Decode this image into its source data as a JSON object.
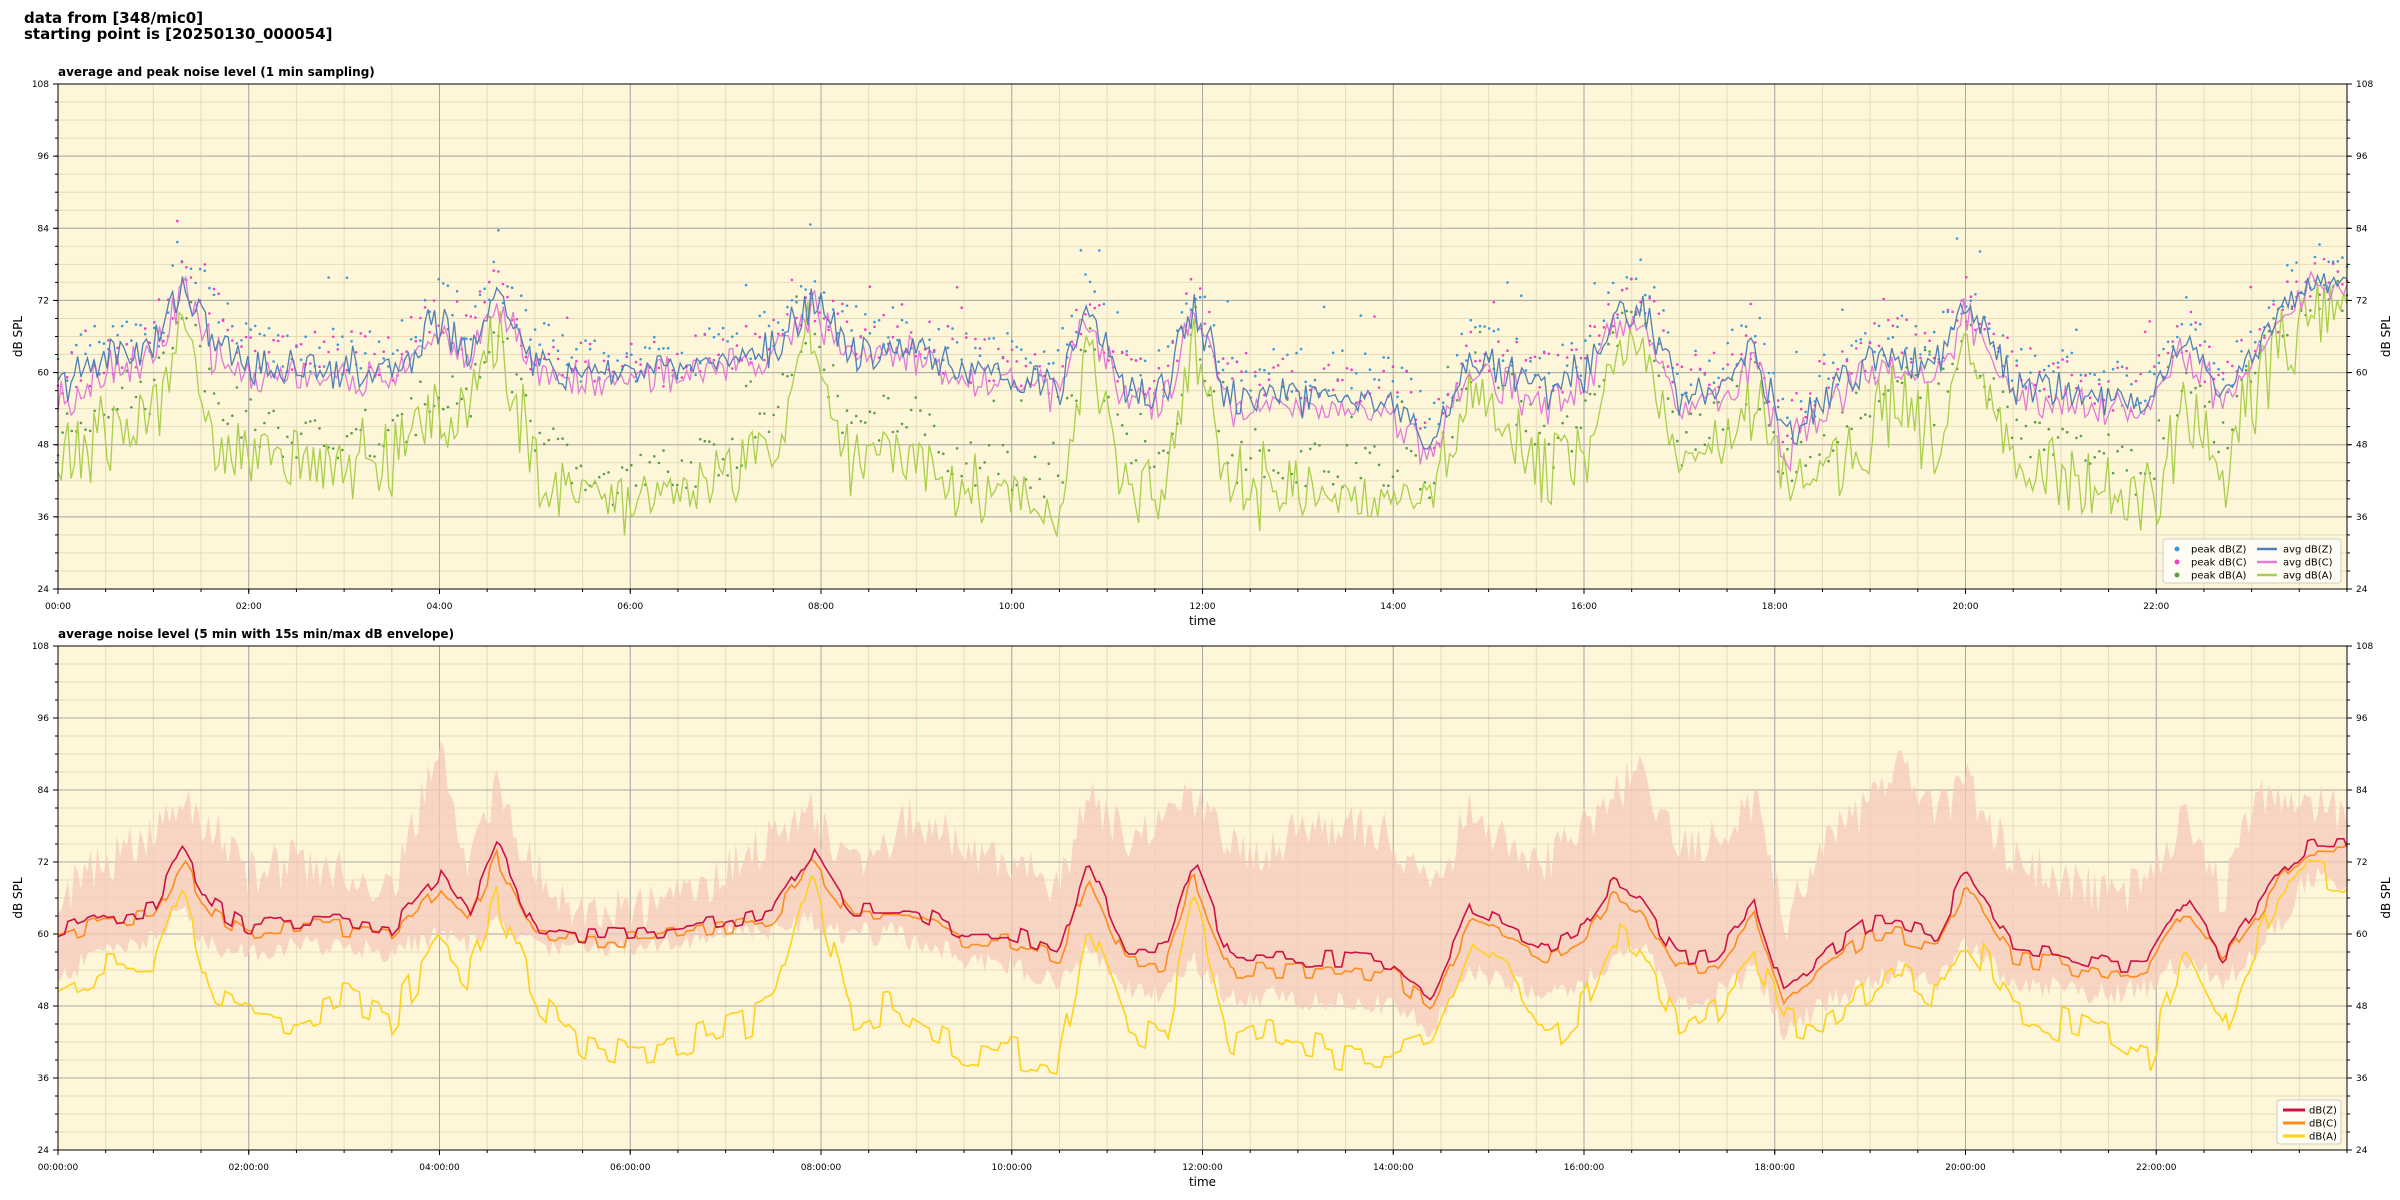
{
  "header": {
    "line1": "data from [348/mic0]",
    "line2": "starting point is [20250130_000054]"
  },
  "colors": {
    "plot_bg": "#fdf6d8",
    "grid_major": "#a8a8a8",
    "grid_minor": "#e6dcb8",
    "peak_z": "#3a9ad9",
    "peak_c": "#ee3fc8",
    "peak_a": "#5b9e47",
    "avg_z": "#4f7fb5",
    "avg_c": "#e27ad8",
    "avg_a": "#a8cf4a",
    "line_z": "#cc1144",
    "line_c": "#ff8c1a",
    "line_a": "#ffd21a",
    "envelope": "#f6c8bc"
  },
  "chart_data": [
    {
      "type": "line",
      "title": "average and peak noise level (1 min sampling)",
      "xlabel": "time",
      "ylabel": "dB SPL",
      "ylim": [
        24,
        108
      ],
      "yticks": [
        "24",
        "36",
        "48",
        "60",
        "72",
        "84",
        "96",
        "108"
      ],
      "xlim_hours": [
        0,
        24
      ],
      "xticks": [
        "00:00",
        "02:00",
        "04:00",
        "06:00",
        "08:00",
        "10:00",
        "12:00",
        "14:00",
        "16:00",
        "18:00",
        "20:00",
        "22:00"
      ],
      "grid": true,
      "legend_position": "lower-right",
      "x_hours": [
        0,
        0.5,
        1,
        1.3,
        1.6,
        2,
        2.5,
        3,
        3.5,
        4,
        4.3,
        4.6,
        5,
        5.5,
        6,
        6.5,
        7,
        7.5,
        7.9,
        8.3,
        8.7,
        9,
        9.5,
        10,
        10.5,
        10.8,
        11.2,
        11.6,
        11.9,
        12.3,
        12.7,
        13,
        13.5,
        14,
        14.4,
        14.8,
        15.2,
        15.6,
        16,
        16.3,
        16.6,
        17,
        17.4,
        17.8,
        18.1,
        18.5,
        19,
        19.3,
        19.7,
        20,
        20.5,
        21,
        21.5,
        21.9,
        22.3,
        22.7,
        23,
        23.3,
        23.6,
        24
      ],
      "series": [
        {
          "name": "peak dB(Z)",
          "kind": "scatter",
          "values": [
            60,
            65,
            66,
            78,
            72,
            64,
            64,
            64,
            63,
            72,
            68,
            77,
            65,
            62,
            62,
            63,
            64,
            67,
            73,
            68,
            67,
            67,
            63,
            63,
            60,
            74,
            60,
            60,
            75,
            59,
            59,
            60,
            60,
            59,
            51,
            66,
            63,
            60,
            63,
            72,
            76,
            60,
            61,
            68,
            51,
            60,
            65,
            67,
            64,
            75,
            62,
            60,
            58,
            58,
            70,
            58,
            66,
            73,
            78,
            78
          ]
        },
        {
          "name": "peak dB(C)",
          "kind": "scatter",
          "values": [
            58,
            63,
            65,
            76,
            71,
            63,
            63,
            63,
            62,
            70,
            67,
            75,
            63,
            61,
            61,
            62,
            63,
            66,
            72,
            67,
            66,
            66,
            62,
            62,
            59,
            72,
            59,
            59,
            73,
            58,
            58,
            59,
            59,
            58,
            50,
            65,
            62,
            59,
            62,
            71,
            74,
            59,
            60,
            66,
            50,
            59,
            64,
            66,
            63,
            73,
            61,
            59,
            57,
            57,
            68,
            57,
            65,
            71,
            76,
            76
          ]
        },
        {
          "name": "peak dB(A)",
          "kind": "scatter",
          "values": [
            48,
            56,
            57,
            72,
            58,
            52,
            49,
            48,
            48,
            58,
            55,
            68,
            50,
            42,
            42,
            44,
            46,
            52,
            68,
            50,
            53,
            52,
            45,
            44,
            42,
            66,
            46,
            44,
            69,
            44,
            47,
            45,
            44,
            44,
            43,
            60,
            57,
            47,
            52,
            65,
            70,
            48,
            52,
            60,
            44,
            48,
            55,
            60,
            54,
            68,
            50,
            48,
            46,
            42,
            58,
            48,
            60,
            68,
            73,
            72
          ]
        },
        {
          "name": "avg dB(Z)",
          "kind": "line",
          "values": [
            57,
            63,
            64,
            75,
            66,
            61,
            61,
            61,
            60,
            69,
            63,
            74,
            61,
            60,
            60,
            61,
            62,
            64,
            72,
            64,
            64,
            64,
            60,
            60,
            57,
            71,
            57,
            57,
            72,
            55,
            56,
            56,
            56,
            55,
            48,
            63,
            60,
            57,
            60,
            69,
            72,
            56,
            57,
            64,
            48,
            56,
            62,
            63,
            61,
            72,
            58,
            57,
            55,
            55,
            66,
            56,
            63,
            70,
            75,
            75
          ]
        },
        {
          "name": "avg dB(C)",
          "kind": "line",
          "values": [
            55,
            61,
            62,
            73,
            64,
            59,
            60,
            59,
            59,
            67,
            62,
            72,
            60,
            59,
            59,
            60,
            61,
            63,
            71,
            63,
            63,
            63,
            59,
            59,
            56,
            69,
            55,
            55,
            70,
            53,
            54,
            54,
            54,
            53,
            46,
            61,
            58,
            55,
            58,
            67,
            70,
            54,
            55,
            62,
            46,
            54,
            60,
            61,
            59,
            70,
            56,
            55,
            54,
            54,
            64,
            55,
            62,
            69,
            74,
            74
          ]
        },
        {
          "name": "avg dB(A)",
          "kind": "line",
          "values": [
            44,
            50,
            52,
            70,
            50,
            47,
            45,
            46,
            45,
            55,
            52,
            66,
            45,
            40,
            38,
            41,
            43,
            47,
            66,
            45,
            48,
            46,
            41,
            40,
            38,
            63,
            41,
            40,
            66,
            40,
            42,
            40,
            39,
            39,
            40,
            58,
            53,
            42,
            47,
            62,
            66,
            44,
            48,
            56,
            40,
            44,
            50,
            56,
            49,
            64,
            46,
            43,
            41,
            38,
            54,
            43,
            56,
            65,
            70,
            70
          ]
        }
      ]
    },
    {
      "type": "line",
      "title": "average noise level (5 min with 15s min/max dB envelope)",
      "xlabel": "time",
      "ylabel": "dB SPL",
      "ylim": [
        24,
        108
      ],
      "yticks": [
        "24",
        "36",
        "48",
        "60",
        "72",
        "84",
        "96",
        "108"
      ],
      "xlim_hours": [
        0,
        24
      ],
      "xticks": [
        "00:00:00",
        "02:00:00",
        "04:00:00",
        "06:00:00",
        "08:00:00",
        "10:00:00",
        "12:00:00",
        "14:00:00",
        "16:00:00",
        "18:00:00",
        "20:00:00",
        "22:00:00"
      ],
      "grid": true,
      "legend_position": "lower-right",
      "x_hours": [
        0,
        0.5,
        1,
        1.3,
        1.6,
        2,
        2.5,
        3,
        3.5,
        4,
        4.3,
        4.6,
        5,
        5.5,
        6,
        6.5,
        7,
        7.5,
        7.9,
        8.3,
        8.7,
        9,
        9.5,
        10,
        10.5,
        10.8,
        11.2,
        11.6,
        11.9,
        12.3,
        12.7,
        13,
        13.5,
        14,
        14.4,
        14.8,
        15.2,
        15.6,
        16,
        16.3,
        16.6,
        17,
        17.4,
        17.8,
        18.1,
        18.5,
        19,
        19.3,
        19.7,
        20,
        20.5,
        21,
        21.5,
        21.9,
        22.3,
        22.7,
        23,
        23.3,
        23.6,
        24
      ],
      "envelope": {
        "min": [
          52,
          58,
          59,
          64,
          58,
          57,
          58,
          58,
          57,
          60,
          58,
          62,
          58,
          58,
          58,
          59,
          60,
          61,
          62,
          60,
          60,
          59,
          56,
          55,
          52,
          58,
          51,
          50,
          56,
          49,
          50,
          49,
          49,
          48,
          44,
          54,
          52,
          50,
          52,
          56,
          58,
          48,
          50,
          54,
          44,
          48,
          52,
          54,
          52,
          58,
          52,
          51,
          50,
          51,
          56,
          52,
          56,
          62,
          70,
          68
        ],
        "max": [
          66,
          72,
          76,
          82,
          78,
          70,
          72,
          70,
          68,
          90,
          72,
          84,
          70,
          64,
          64,
          66,
          70,
          76,
          80,
          72,
          76,
          80,
          74,
          72,
          68,
          84,
          76,
          80,
          82,
          74,
          74,
          78,
          78,
          76,
          66,
          80,
          76,
          72,
          78,
          84,
          86,
          74,
          76,
          82,
          62,
          74,
          82,
          88,
          80,
          86,
          72,
          70,
          66,
          68,
          80,
          66,
          82,
          84,
          82,
          80
        ]
      },
      "series": [
        {
          "name": "dB(Z)",
          "values": [
            60,
            63,
            64,
            74,
            65,
            61,
            62,
            62,
            61,
            70,
            63,
            75,
            61,
            60,
            60,
            61,
            62,
            64,
            74,
            64,
            64,
            64,
            60,
            60,
            57,
            72,
            57,
            57,
            72,
            56,
            56,
            56,
            56,
            55,
            50,
            64,
            61,
            58,
            61,
            68,
            66,
            56,
            57,
            65,
            50,
            56,
            62,
            62,
            60,
            70,
            58,
            57,
            55,
            55,
            66,
            56,
            63,
            70,
            75,
            75
          ]
        },
        {
          "name": "dB(C)",
          "values": [
            59,
            62,
            63,
            72,
            64,
            60,
            61,
            61,
            60,
            68,
            62,
            73,
            60,
            59,
            59,
            60,
            61,
            63,
            72,
            63,
            63,
            63,
            59,
            59,
            56,
            70,
            55,
            55,
            70,
            54,
            54,
            54,
            54,
            53,
            48,
            62,
            59,
            56,
            59,
            66,
            64,
            54,
            55,
            63,
            48,
            54,
            60,
            60,
            58,
            68,
            56,
            55,
            53,
            54,
            64,
            55,
            62,
            69,
            74,
            74
          ]
        },
        {
          "name": "dB(A)",
          "values": [
            50,
            54,
            54,
            68,
            50,
            47,
            46,
            49,
            46,
            58,
            53,
            66,
            50,
            42,
            40,
            41,
            44,
            47,
            70,
            46,
            48,
            45,
            41,
            40,
            38,
            62,
            45,
            42,
            65,
            42,
            44,
            42,
            40,
            40,
            42,
            58,
            53,
            42,
            48,
            60,
            56,
            44,
            48,
            56,
            46,
            44,
            50,
            54,
            50,
            60,
            48,
            45,
            42,
            38,
            56,
            43,
            56,
            66,
            70,
            68
          ]
        }
      ]
    }
  ]
}
